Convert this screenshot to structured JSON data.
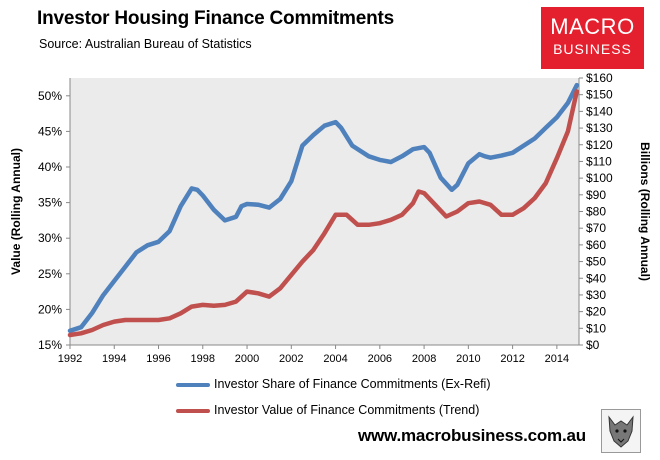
{
  "header": {
    "title": "Investor Housing Finance Commitments",
    "subtitle": "Source: Australian Bureau of Statistics"
  },
  "logo": {
    "line1": "MACRO",
    "line2": "BUSINESS",
    "color": "#e5202e"
  },
  "footer": {
    "website": "www.macrobusiness.com.au",
    "icon": "wolf-logo-icon"
  },
  "chart_data": {
    "type": "line",
    "title": "Investor Housing Finance Commitments",
    "xlabel": "",
    "ylabel_left": "Value (Rolling Annual)",
    "ylabel_right": "Billions (Rolling Annual)",
    "xlim": [
      1992,
      2015
    ],
    "ylim_left": [
      15,
      52.5
    ],
    "ylim_right": [
      0,
      160
    ],
    "x_ticks": [
      1992,
      1994,
      1996,
      1998,
      2000,
      2002,
      2004,
      2006,
      2008,
      2010,
      2012,
      2014
    ],
    "x_tick_labels": [
      "1992",
      "1994",
      "1996",
      "1998",
      "2000",
      "2002",
      "2004",
      "2006",
      "2008",
      "2010",
      "2012",
      "2014"
    ],
    "y_left_ticks": [
      15,
      20,
      25,
      30,
      35,
      40,
      45,
      50
    ],
    "y_left_tick_labels": [
      "15%",
      "20%",
      "25%",
      "30%",
      "35%",
      "40%",
      "45%",
      "50%"
    ],
    "y_right_ticks": [
      0,
      10,
      20,
      30,
      40,
      50,
      60,
      70,
      80,
      90,
      100,
      110,
      120,
      130,
      140,
      150,
      160
    ],
    "y_right_tick_labels": [
      "$0",
      "$10",
      "$20",
      "$30",
      "$40",
      "$50",
      "$60",
      "$70",
      "$80",
      "$90",
      "$100",
      "$110",
      "$120",
      "$130",
      "$140",
      "$150",
      "$160"
    ],
    "legend_position": "bottom",
    "series": [
      {
        "name": "Investor Share of Finance Commitments (Ex-Refi)",
        "axis": "left",
        "color": "#4f81bd",
        "x": [
          1992.0,
          1992.5,
          1993.0,
          1993.5,
          1994.0,
          1994.5,
          1995.0,
          1995.5,
          1996.0,
          1996.5,
          1997.0,
          1997.5,
          1997.75,
          1998.0,
          1998.5,
          1999.0,
          1999.5,
          1999.75,
          2000.0,
          2000.5,
          2001.0,
          2001.5,
          2002.0,
          2002.5,
          2003.0,
          2003.5,
          2004.0,
          2004.25,
          2004.75,
          2005.5,
          2006.0,
          2006.5,
          2007.0,
          2007.5,
          2008.0,
          2008.25,
          2008.75,
          2009.25,
          2009.5,
          2010.0,
          2010.5,
          2010.75,
          2011.0,
          2011.5,
          2012.0,
          2012.5,
          2013.0,
          2013.5,
          2014.0,
          2014.5,
          2014.9
        ],
        "values": [
          17.0,
          17.5,
          19.5,
          22.0,
          24.0,
          26.0,
          28.0,
          29.0,
          29.5,
          31.0,
          34.5,
          37.0,
          36.8,
          36.0,
          34.0,
          32.5,
          33.0,
          34.5,
          34.8,
          34.7,
          34.3,
          35.5,
          38.0,
          43.0,
          44.5,
          45.8,
          46.3,
          45.5,
          43.0,
          41.5,
          41.0,
          40.7,
          41.5,
          42.5,
          42.8,
          42.0,
          38.5,
          36.8,
          37.5,
          40.5,
          41.8,
          41.5,
          41.3,
          41.6,
          42.0,
          43.0,
          44.0,
          45.5,
          47.0,
          49.0,
          51.5
        ]
      },
      {
        "name": "Investor Value of Finance Commitments (Trend)",
        "axis": "right",
        "color": "#c0504d",
        "x": [
          1992.0,
          1992.5,
          1993.0,
          1993.5,
          1994.0,
          1994.5,
          1995.0,
          1995.5,
          1996.0,
          1996.5,
          1997.0,
          1997.5,
          1998.0,
          1998.5,
          1999.0,
          1999.5,
          2000.0,
          2000.5,
          2001.0,
          2001.5,
          2002.0,
          2002.5,
          2003.0,
          2003.5,
          2004.0,
          2004.5,
          2005.0,
          2005.5,
          2006.0,
          2006.5,
          2007.0,
          2007.5,
          2007.75,
          2008.0,
          2008.5,
          2009.0,
          2009.5,
          2010.0,
          2010.5,
          2011.0,
          2011.5,
          2012.0,
          2012.5,
          2013.0,
          2013.5,
          2014.0,
          2014.5,
          2014.9
        ],
        "values": [
          6.0,
          7.0,
          9.0,
          12.0,
          14.0,
          15.0,
          15.0,
          15.0,
          15.0,
          16.0,
          19.0,
          23.0,
          24.0,
          23.5,
          24.0,
          26.0,
          32.0,
          31.0,
          29.0,
          34.0,
          42.0,
          50.0,
          57.0,
          67.0,
          78.0,
          78.0,
          72.0,
          72.0,
          73.0,
          75.0,
          78.0,
          85.0,
          92.0,
          91.0,
          84.0,
          77.0,
          80.0,
          85.0,
          86.0,
          84.0,
          78.0,
          78.0,
          82.0,
          88.0,
          97.0,
          112.0,
          128.0,
          152.0
        ]
      }
    ]
  }
}
